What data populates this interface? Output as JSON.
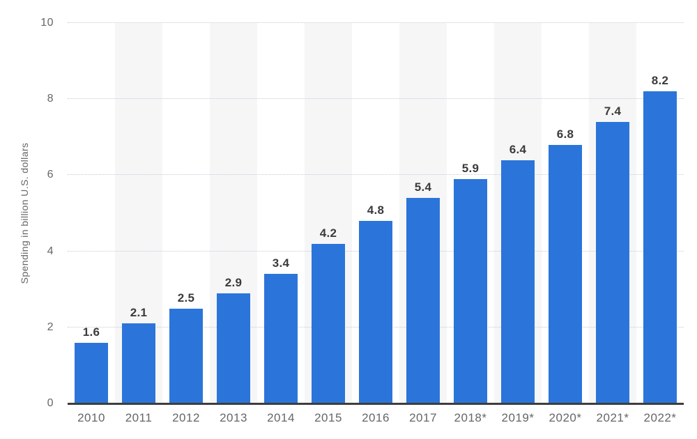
{
  "chart_data": {
    "type": "bar",
    "title": "",
    "xlabel": "",
    "ylabel": "Spending in billion U.S. dollars",
    "categories": [
      "2010",
      "2011",
      "2012",
      "2013",
      "2014",
      "2015",
      "2016",
      "2017",
      "2018*",
      "2019*",
      "2020*",
      "2021*",
      "2022*"
    ],
    "values": [
      1.6,
      2.1,
      2.5,
      2.9,
      3.4,
      4.2,
      4.8,
      5.4,
      5.9,
      6.4,
      6.8,
      7.4,
      8.2
    ],
    "value_labels": [
      "1.6",
      "2.1",
      "2.5",
      "2.9",
      "3.4",
      "4.2",
      "4.8",
      "5.4",
      "5.9",
      "6.4",
      "6.8",
      "7.4",
      "8.2"
    ],
    "ylim": [
      0,
      10
    ],
    "yticks": [
      0,
      2,
      4,
      6,
      8,
      10
    ],
    "grid": "horizontal-dotted",
    "legend_position": "none",
    "background_stripes": "alternating vertical bands behind odd-index columns",
    "colors": {
      "bar": "#2b75da",
      "band": "#f6f6f7",
      "gridline": "#c6cad8",
      "axis_line": "#3d3d3d",
      "value_label": "#3b3b3b",
      "axis_text": "#666666"
    }
  }
}
